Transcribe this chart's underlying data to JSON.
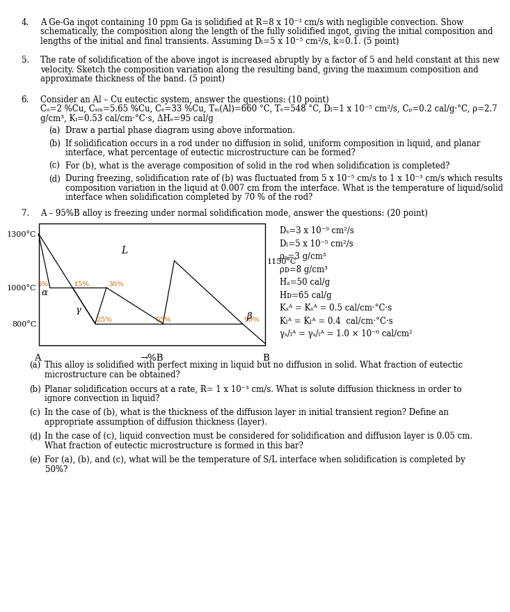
{
  "background_color": "#ffffff",
  "page_width": 6.4,
  "page_height": 8.6,
  "font_body": 8.5,
  "q4_text": [
    "A Ge-Ga ingot containing 10 ppm Ga is solidified at R=8 x 10⁻³ cm/s with negligible convection. Show",
    "schematically, the composition along the length of the fully solidified ingot, giving the initial composition and",
    "lengths of the initial and final transients. Assuming Dₗ=5 x 10⁻⁵ cm²/s, k=0.1. (5 point)"
  ],
  "q5_text": [
    "The rate of solidification of the above ingot is increased abruptly by a factor of 5 and held constant at this new",
    "velocity. Sketch the composition variation along the resulting band, giving the maximum composition and",
    "approximate thickness of the band. (5 point)"
  ],
  "q6_line1": "Consider an Al – Cu eutectic system, answer the questions: (10 point)",
  "q6_line2": "Cₒ=2 %Cu, Cₛₘ=5.65 %Cu, Cₑ=33 %Cu, Tₘ(Al)=660 °C, Tₑ=548 °C, Dₗ=1 x 10⁻⁵ cm²/s, Cₚ=0.2 cal/g·°C, ρ=2.7",
  "q6_line3": "g/cm³, Kₜ=0.53 cal/cm·°C·s, ΔHₑ=95 cal/g",
  "q6_subs": [
    [
      "(a)",
      "Draw a partial phase diagram using above information."
    ],
    [
      "(b)",
      "If solidification occurs in a rod under no diffusion in solid, uniform composition in liquid, and planar",
      "interface, what percentage of eutectic microstructure can be formed?"
    ],
    [
      "(c)",
      "For (b), what is the average composition of solid in the rod when solidification is completed?"
    ],
    [
      "(d)",
      "During freezing, solidification rate of (b) was fluctuated from 5 x 10⁻⁵ cm/s to 1 x 10⁻³ cm/s which results",
      "composition variation in the liquid at 0.007 cm from the interface. What is the temperature of liquid/solid",
      "interface when solidification completed by 70 % of the rod?"
    ]
  ],
  "q7_text": "A – 95%B alloy is freezing under normal solidification mode, answer the questions: (20 point)",
  "q7_subs": [
    [
      "(a)",
      "This alloy is solidified with perfect mixing in liquid but no diffusion in solid. What fraction of eutectic",
      "microstructure can be obtained?"
    ],
    [
      "(b)",
      "Planar solidification occurs at a rate, R= 1 x 10⁻³ cm/s. What is solute diffusion thickness in order to",
      "ignore convection in liquid?"
    ],
    [
      "(c)",
      "In the case of (b), what is the thickness of the diffusion layer in initial transient region? Define an",
      "appropriate assumption of diffusion thickness (layer)."
    ],
    [
      "(d)",
      "In the case of (c), liquid convection must be considered for solidification and diffusion layer is 0.05 cm.",
      "What fraction of eutectic microstructure is formed in this bar?"
    ],
    [
      "(e)",
      "For (a), (b), and (c), what will be the temperature of S/L interface when solidification is completed by",
      "50%?"
    ]
  ],
  "right_texts": [
    "Dₛ=3 x 10⁻⁹ cm²/s",
    "Dₗ=5 x 10⁻⁵ cm²/s",
    "ρₐ=3 g/cm³",
    "ρᴅ=8 g/cm³",
    "Hₐ=50 cal/g",
    "Hᴅ=65 cal/g",
    "Kₛᴬ = Kₛᴬ = 0.5 cal/cm·°C·s",
    "Kₗᴬ = Kₗᴬ = 0.4  cal/cm·°C·s",
    "γₛ/ₗᴬ = γₛ/ₗᴬ = 1.0 × 10⁻⁶ cal/cm²"
  ],
  "diag_lines": [
    [
      [
        0.0,
        1300
      ],
      [
        0.05,
        1000
      ]
    ],
    [
      [
        0.0,
        1300
      ],
      [
        0.25,
        800
      ]
    ],
    [
      [
        0.05,
        1000
      ],
      [
        0.3,
        1000
      ]
    ],
    [
      [
        0.15,
        1000
      ],
      [
        0.25,
        800
      ]
    ],
    [
      [
        0.3,
        1000
      ],
      [
        0.25,
        800
      ]
    ],
    [
      [
        0.25,
        800
      ],
      [
        0.9,
        800
      ]
    ],
    [
      [
        0.3,
        1000
      ],
      [
        0.55,
        800
      ]
    ],
    [
      [
        0.55,
        800
      ],
      [
        0.6,
        1150
      ]
    ],
    [
      [
        0.9,
        800
      ],
      [
        0.6,
        1150
      ]
    ],
    [
      [
        0.9,
        800
      ],
      [
        1.0,
        690
      ]
    ]
  ],
  "orange_labels": [
    [
      0.05,
      1005,
      "5%",
      "right"
    ],
    [
      0.15,
      1005,
      "15%",
      "left"
    ],
    [
      0.3,
      1005,
      "30%",
      "left"
    ],
    [
      0.25,
      805,
      "25%",
      "left"
    ],
    [
      0.55,
      805,
      "55%",
      "center"
    ],
    [
      0.9,
      805,
      "90%",
      "left"
    ]
  ],
  "phase_labels": [
    [
      0.025,
      975,
      "α"
    ],
    [
      0.175,
      880,
      "γ"
    ],
    [
      0.93,
      845,
      "β"
    ]
  ]
}
